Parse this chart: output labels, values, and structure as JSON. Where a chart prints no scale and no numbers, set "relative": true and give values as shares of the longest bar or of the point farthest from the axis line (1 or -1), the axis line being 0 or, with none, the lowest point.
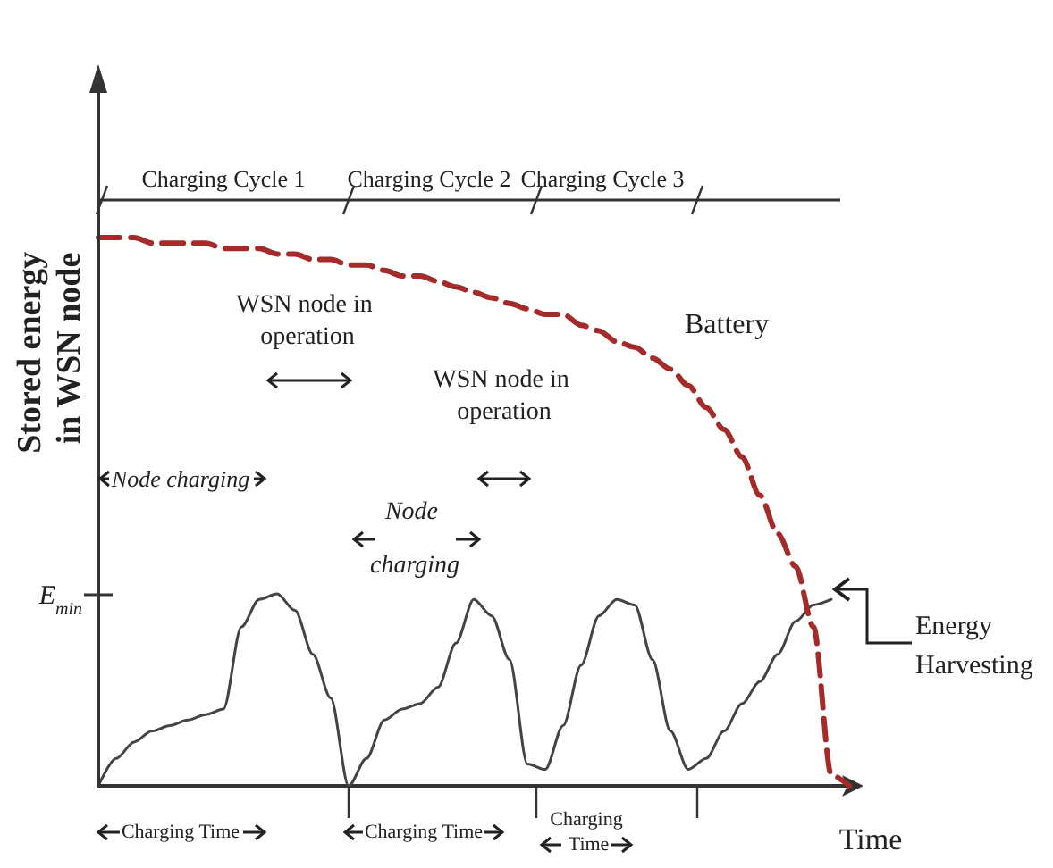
{
  "chart_data": {
    "type": "line",
    "relative": true,
    "xlabel": "Time",
    "ylabel": "Stored energy in WSN node",
    "marker": "none",
    "categories": [
      null,
      null,
      null,
      null,
      null,
      null,
      null,
      null,
      null,
      null,
      null,
      null,
      null,
      null,
      null,
      null,
      null,
      null,
      null,
      null,
      null,
      null,
      null,
      null,
      null,
      null,
      null,
      null,
      null,
      null,
      null,
      null,
      null,
      null,
      null,
      null,
      null,
      null,
      null,
      null,
      null,
      null,
      null
    ],
    "series": [
      {
        "name": "Battery",
        "color": "#a52a2a",
        "line_style": "dashed",
        "values": [
          1,
          1.0,
          1.0,
          0.99,
          0.99,
          0.99,
          0.99,
          0.98,
          0.98,
          0.98,
          0.97,
          0.97,
          0.96,
          0.96,
          0.95,
          0.95,
          0.94,
          0.93,
          0.93,
          0.92,
          0.91,
          0.9,
          0.89,
          0.88,
          0.87,
          0.86,
          0.86,
          0.84,
          0.83,
          0.81,
          0.8,
          0.78,
          0.76,
          0.73,
          0.69,
          0.65,
          0.6,
          0.53,
          0.46,
          0.4,
          0.29,
          0.02,
          0
        ]
      },
      {
        "name": "Energy Harvesting",
        "color": "#444444",
        "line_style": "solid",
        "values": [
          0,
          0.05,
          0.08,
          0.1,
          0.11,
          0.12,
          0.13,
          0.14,
          0.29,
          0.34,
          0.35,
          0.32,
          0.24,
          0.16,
          0,
          0.05,
          0.12,
          0.14,
          0.15,
          0.18,
          0.26,
          0.34,
          0.31,
          0.23,
          0.04,
          0.03,
          0.11,
          0.22,
          0.31,
          0.34,
          0.33,
          0.23,
          0.1,
          0.03,
          0.05,
          0.1,
          0.15,
          0.19,
          0.24,
          0.3,
          0.33,
          0.34,
          null
        ]
      }
    ],
    "annotations": [
      "Charging Cycle 1",
      "Charging Cycle 2",
      "Charging Cycle 3",
      "WSN node in operation",
      "WSN node in operation",
      "Node charging",
      "Node charging",
      "Charging Time",
      "Charging Time",
      "Charging Time",
      "E$_{min}$"
    ]
  }
}
